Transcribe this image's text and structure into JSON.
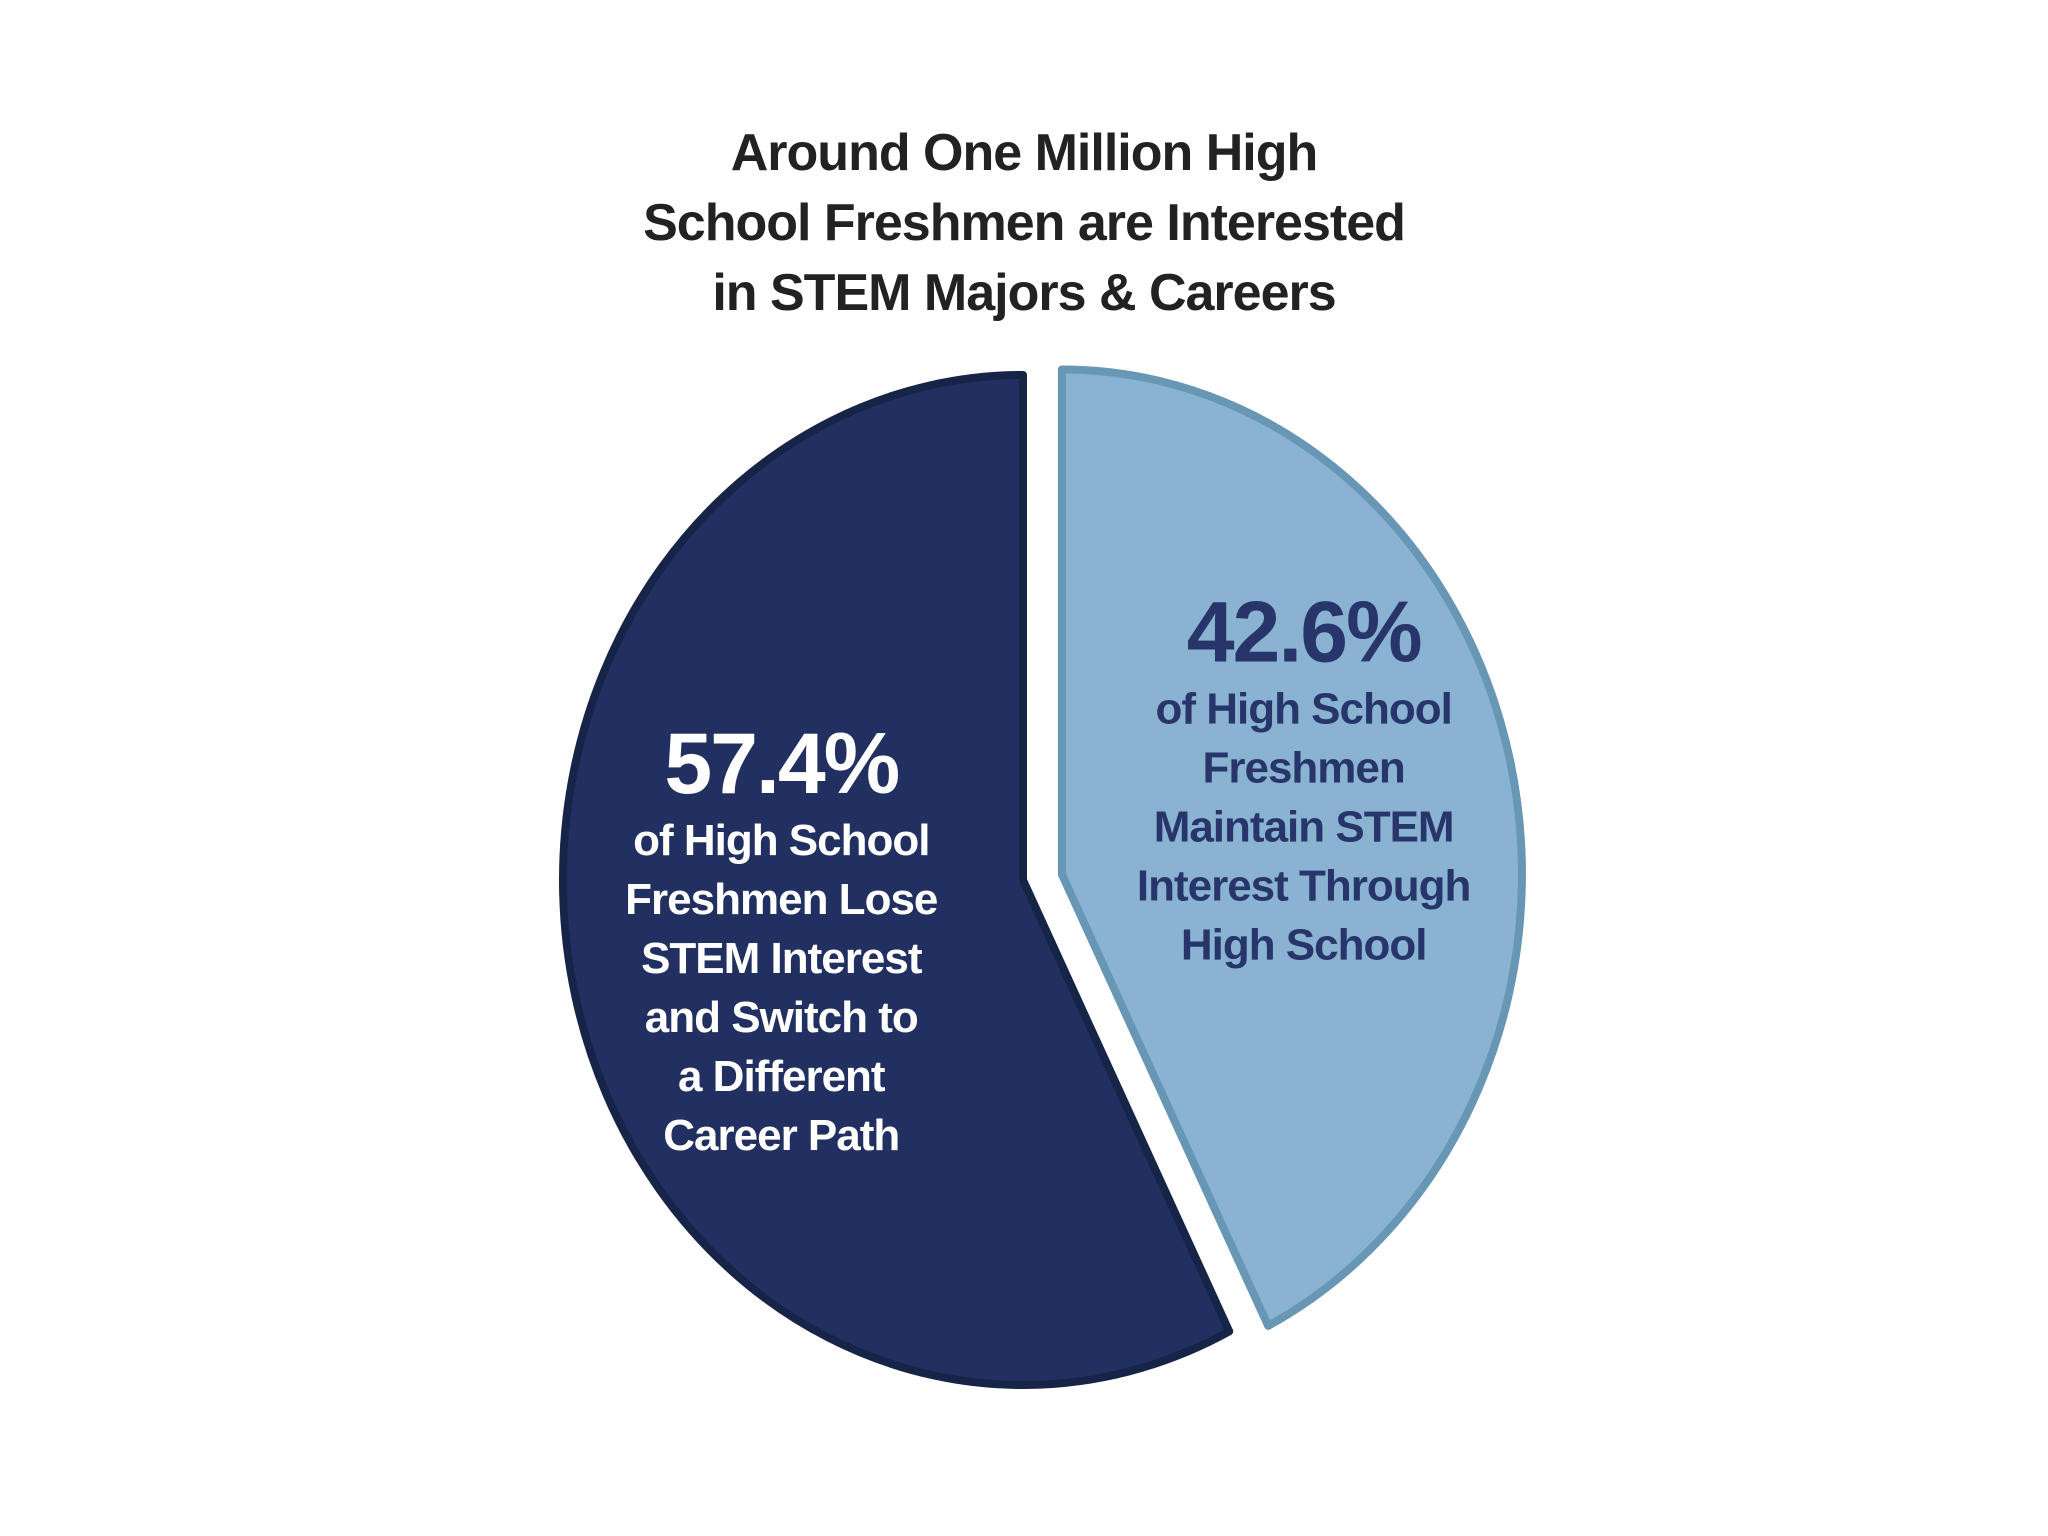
{
  "title": {
    "lines": [
      "Around One Million High",
      "School Freshmen are Interested",
      "in STEM Majors & Careers"
    ]
  },
  "chart_data": {
    "type": "pie",
    "title": "Around One Million High School Freshmen are Interested in STEM Majors & Careers",
    "slices": [
      {
        "value": 57.4,
        "label": "57.4%",
        "description_lines": [
          "of High School",
          "Freshmen Lose",
          "STEM Interest",
          "and Switch to",
          "a Different",
          "Career Path"
        ],
        "color": "#213061",
        "text_color": "#ffffff",
        "exploded": false
      },
      {
        "value": 42.6,
        "label": "42.6%",
        "description_lines": [
          "of High School",
          "Freshmen",
          "Maintain STEM",
          "Interest Through",
          "High School"
        ],
        "color": "#89b3d1",
        "text_color": "#27356b",
        "exploded": true
      }
    ],
    "slice_edge_colors": [
      "#162447",
      "#6896b5"
    ],
    "legend": "none"
  }
}
